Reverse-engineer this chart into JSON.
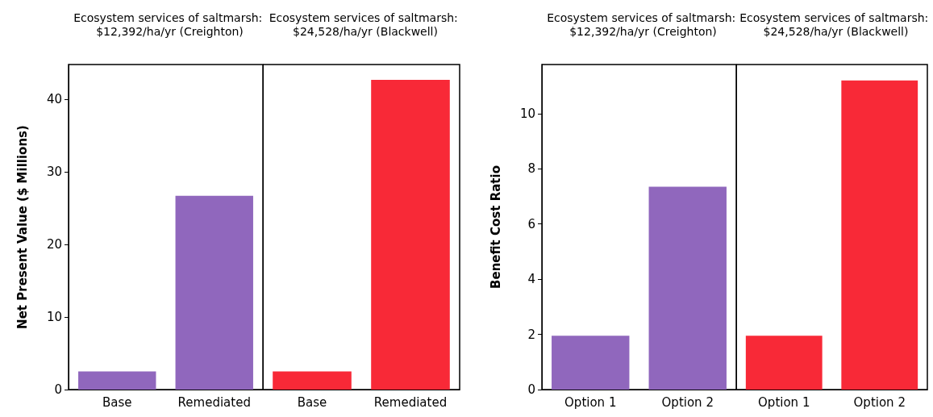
{
  "chart_data": [
    {
      "type": "bar",
      "title": "Ecosystem services of saltmarsh: $12,392/ha/yr (Creighton)",
      "categories": [
        "Base",
        "Remediated"
      ],
      "values": [
        2.5,
        26.7
      ],
      "color": "#9067bd",
      "ylabel": "Net Present Value ($ Millions)",
      "ylim": [
        0,
        44.8
      ],
      "yticks": [
        0,
        10,
        20,
        30,
        40
      ]
    },
    {
      "type": "bar",
      "title": "Ecosystem services of saltmarsh: $24,528/ha/yr (Blackwell)",
      "categories": [
        "Base",
        "Remediated"
      ],
      "values": [
        2.5,
        42.7
      ],
      "color": "#f82937",
      "ylim": [
        0,
        44.8
      ],
      "yticks": [
        0,
        10,
        20,
        30,
        40
      ],
      "tick_labels": "x"
    },
    {
      "type": "bar",
      "title": "Ecosystem services of saltmarsh: $12,392/ha/yr (Creighton)",
      "categories": [
        "Option 1",
        "Option 2"
      ],
      "values": [
        1.95,
        7.35
      ],
      "color": "#9067bd",
      "ylabel": "Benefit Cost Ratio",
      "ylim": [
        0,
        11.78
      ],
      "yticks": [
        0,
        2,
        4,
        6,
        8,
        10
      ]
    },
    {
      "type": "bar",
      "title": "Ecosystem services of saltmarsh: $24,528/ha/yr (Blackwell)",
      "categories": [
        "Option 1",
        "Option 2"
      ],
      "values": [
        1.95,
        11.2
      ],
      "color": "#f82937",
      "ylim": [
        0,
        11.78
      ],
      "yticks": [
        0,
        2,
        4,
        6,
        8,
        10
      ],
      "tick_labels": "x"
    }
  ]
}
